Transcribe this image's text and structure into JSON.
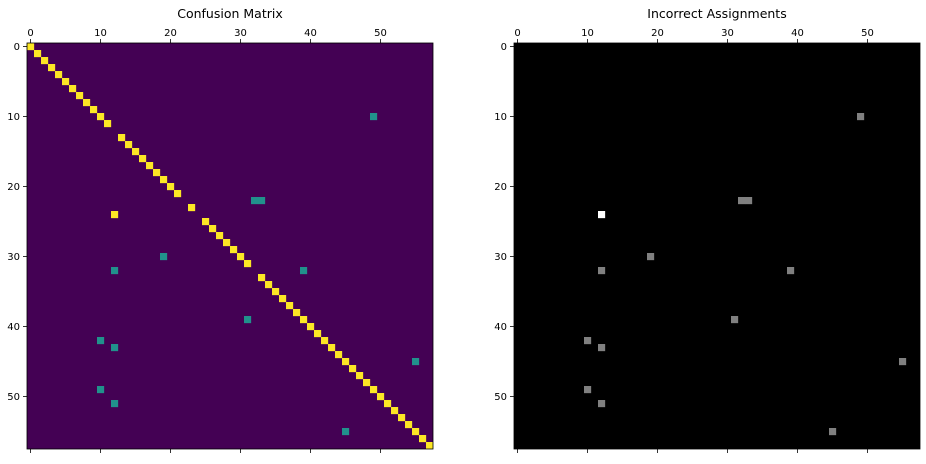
{
  "chart_data": [
    {
      "type": "heatmap",
      "title": "Confusion Matrix",
      "size": 58,
      "xticks": [
        0,
        10,
        20,
        30,
        40,
        50
      ],
      "yticks": [
        0,
        10,
        20,
        30,
        40,
        50
      ],
      "colormap": "viridis",
      "colors": {
        "background": "#440154",
        "off_diagonal": "#21918c",
        "diagonal": "#fde725"
      },
      "diagonal_missing_rows": [
        12,
        22,
        24,
        32
      ],
      "bright_cells": [
        [
          24,
          12
        ]
      ],
      "mid_cells": [
        [
          10,
          49
        ],
        [
          22,
          32
        ],
        [
          22,
          33
        ],
        [
          30,
          19
        ],
        [
          32,
          12
        ],
        [
          32,
          39
        ],
        [
          39,
          31
        ],
        [
          42,
          10
        ],
        [
          43,
          12
        ],
        [
          45,
          55
        ],
        [
          49,
          10
        ],
        [
          51,
          12
        ],
        [
          55,
          45
        ]
      ]
    },
    {
      "type": "heatmap",
      "title": "Incorrect Assignments",
      "size": 58,
      "xticks": [
        0,
        10,
        20,
        30,
        40,
        50
      ],
      "yticks": [
        0,
        10,
        20,
        30,
        40,
        50
      ],
      "colormap": "gray",
      "colors": {
        "background": "#000000",
        "mid": "#808080",
        "bright": "#ffffff"
      },
      "bright_cells": [
        [
          24,
          12
        ]
      ],
      "mid_cells": [
        [
          10,
          49
        ],
        [
          22,
          32
        ],
        [
          22,
          33
        ],
        [
          30,
          19
        ],
        [
          32,
          12
        ],
        [
          32,
          39
        ],
        [
          39,
          31
        ],
        [
          42,
          10
        ],
        [
          43,
          12
        ],
        [
          45,
          55
        ],
        [
          49,
          10
        ],
        [
          51,
          12
        ],
        [
          55,
          45
        ]
      ]
    }
  ]
}
